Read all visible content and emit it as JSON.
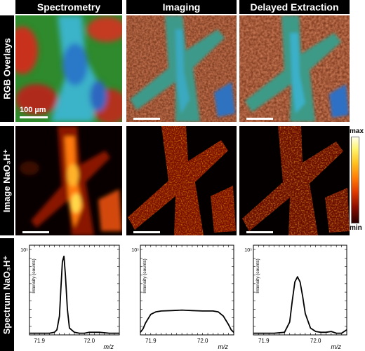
{
  "columns": [
    "Spectrometry",
    "Imaging",
    "Delayed Extraction"
  ],
  "rows": {
    "rgb": "RGB Overlays",
    "image": "Image NaO₃H⁺",
    "spectrum": "Spectrum NaO₃H⁺"
  },
  "scale_label": "100 µm",
  "colorbar": {
    "max": "max",
    "min": "min"
  },
  "chart_data": [
    {
      "type": "line",
      "title": "",
      "xlabel": "m/z",
      "ylabel": "Intensity (counts)",
      "x_ticks": [
        "71.9",
        "72.0"
      ],
      "y_ticks": [
        "10⁵"
      ],
      "xlim": [
        71.88,
        72.06
      ],
      "ylim": [
        0,
        1.05
      ],
      "x": [
        71.88,
        71.9,
        71.92,
        71.93,
        71.935,
        71.94,
        71.943,
        71.946,
        71.949,
        71.952,
        71.956,
        71.96,
        71.97,
        71.98,
        71.99,
        72.0,
        72.02,
        72.04,
        72.06
      ],
      "values": [
        0.02,
        0.02,
        0.02,
        0.03,
        0.06,
        0.22,
        0.55,
        0.86,
        0.92,
        0.7,
        0.3,
        0.08,
        0.03,
        0.02,
        0.02,
        0.03,
        0.03,
        0.02,
        0.02
      ]
    },
    {
      "type": "line",
      "title": "",
      "xlabel": "m/z",
      "ylabel": "Intensity (counts)",
      "x_ticks": [
        "71.9",
        "72.0"
      ],
      "y_ticks": [
        "10⁵"
      ],
      "xlim": [
        71.88,
        72.06
      ],
      "ylim": [
        0,
        1.05
      ],
      "x": [
        71.88,
        71.885,
        71.89,
        71.9,
        71.91,
        71.92,
        71.94,
        71.96,
        71.98,
        72.0,
        72.02,
        72.03,
        72.04,
        72.05,
        72.055,
        72.06
      ],
      "values": [
        0.03,
        0.07,
        0.14,
        0.24,
        0.27,
        0.28,
        0.285,
        0.29,
        0.285,
        0.28,
        0.28,
        0.27,
        0.22,
        0.12,
        0.06,
        0.03
      ]
    },
    {
      "type": "line",
      "title": "",
      "xlabel": "m/z",
      "ylabel": "Intensity (counts)",
      "x_ticks": [
        "71.9",
        "72.0"
      ],
      "y_ticks": [
        "10⁵"
      ],
      "xlim": [
        71.88,
        72.06
      ],
      "ylim": [
        0,
        1.05
      ],
      "x": [
        71.88,
        71.9,
        71.92,
        71.94,
        71.95,
        71.955,
        71.96,
        71.965,
        71.97,
        71.975,
        71.98,
        71.99,
        72.0,
        72.01,
        72.02,
        72.03,
        72.04,
        72.05,
        72.06
      ],
      "values": [
        0.02,
        0.02,
        0.02,
        0.03,
        0.15,
        0.4,
        0.62,
        0.68,
        0.62,
        0.45,
        0.25,
        0.08,
        0.04,
        0.03,
        0.03,
        0.04,
        0.02,
        0.02,
        0.06
      ]
    }
  ]
}
